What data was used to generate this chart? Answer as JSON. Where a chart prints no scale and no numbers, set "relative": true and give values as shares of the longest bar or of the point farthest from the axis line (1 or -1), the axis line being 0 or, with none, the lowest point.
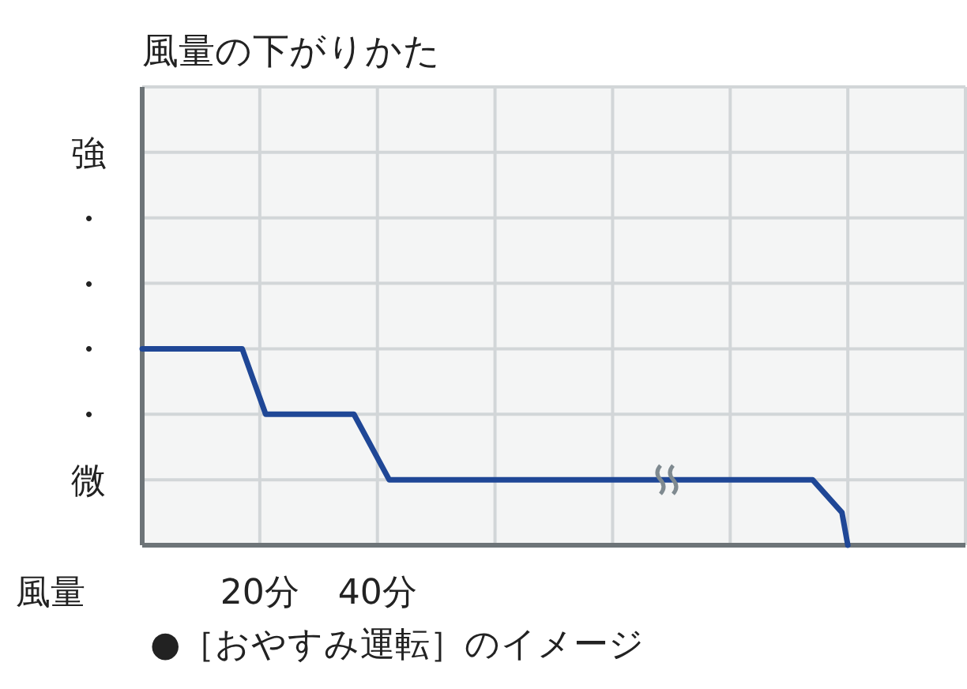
{
  "chart_data": {
    "type": "line",
    "title": "風量の下がりかた",
    "ylabel": "風量",
    "relative": true,
    "annotations": [
      "強",
      "・",
      "・",
      "・",
      "・",
      "微",
      "●［おやすみ運転］のイメージ"
    ],
    "series": [
      {
        "color": "#1f4796",
        "x": [
          0,
          17,
          19,
          21,
          36,
          39,
          42,
          114,
          119,
          120
        ],
        "values": [
          1,
          1,
          0.8333,
          0.6667,
          0.6667,
          0.5,
          0.3333,
          0.3333,
          0.1667,
          0
        ]
      }
    ],
    "xlim": [
      0,
      140
    ],
    "xticks": [
      {
        "value": 20,
        "label": "20分"
      },
      {
        "value": 40,
        "label": "40分"
      },
      {
        "value": 60,
        "label": null
      },
      {
        "value": 80,
        "label": null
      },
      {
        "value": 100,
        "label": null
      },
      {
        "value": 120,
        "label": null
      }
    ],
    "grid": true
  }
}
